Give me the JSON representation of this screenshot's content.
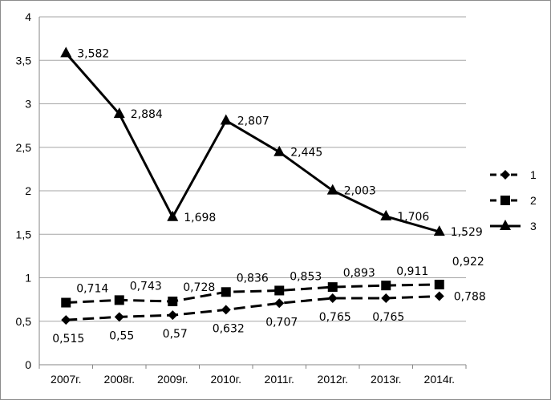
{
  "chart_data": {
    "type": "line",
    "title": "",
    "xlabel": "",
    "ylabel": "",
    "categories": [
      "2007г.",
      "2008г.",
      "2009г.",
      "2010г.",
      "2011г.",
      "2012г.",
      "2013г.",
      "2014г."
    ],
    "ylim": [
      0,
      4
    ],
    "yticks": [
      "0",
      "0,5",
      "1",
      "1,5",
      "2",
      "2,5",
      "3",
      "3,5",
      "4"
    ],
    "ytick_values": [
      0,
      0.5,
      1,
      1.5,
      2,
      2.5,
      3,
      3.5,
      4
    ],
    "grid": true,
    "legend_position": "right",
    "series": [
      {
        "name": "1",
        "marker": "diamond",
        "line_style": "dashed",
        "values": [
          0.515,
          0.55,
          0.57,
          0.632,
          0.707,
          0.765,
          0.765,
          0.788
        ],
        "labels": [
          "0,515",
          "0,55",
          "0,57",
          "0,632",
          "0,707",
          "0,765",
          "0,765",
          "0,788"
        ]
      },
      {
        "name": "2",
        "marker": "square",
        "line_style": "dashed",
        "values": [
          0.714,
          0.743,
          0.728,
          0.836,
          0.853,
          0.893,
          0.911,
          0.922
        ],
        "labels": [
          "0,714",
          "0,743",
          "0,728",
          "0,836",
          "0,853",
          "0,893",
          "0,911",
          "0,922"
        ]
      },
      {
        "name": "3",
        "marker": "triangle",
        "line_style": "solid",
        "values": [
          3.582,
          2.884,
          1.698,
          2.807,
          2.445,
          2.003,
          1.706,
          1.529
        ],
        "labels": [
          "3,582",
          "2,884",
          "1,698",
          "2,807",
          "2,445",
          "2,003",
          "1,706",
          "1,529"
        ]
      }
    ],
    "colors": {
      "line": "#000000",
      "grid": "#a6a6a6"
    }
  }
}
